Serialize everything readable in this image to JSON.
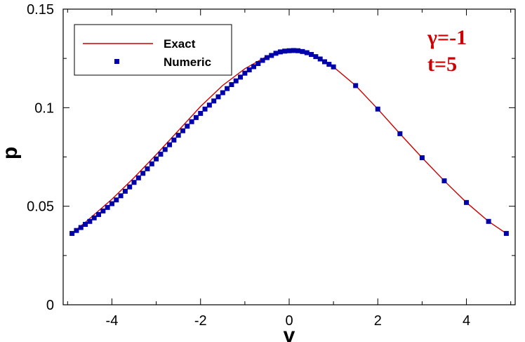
{
  "chart_data": {
    "type": "scatter",
    "xlabel": "v",
    "ylabel": "p",
    "xlim": [
      -5.1,
      5.1
    ],
    "ylim": [
      0,
      0.15
    ],
    "xticks": [
      -4,
      -2,
      0,
      2,
      4
    ],
    "xtick_labels": [
      "-4",
      "-2",
      "0",
      "2",
      "4"
    ],
    "yticks": [
      0,
      0.05,
      0.1,
      0.15
    ],
    "ytick_labels": [
      "0",
      "0.05",
      "0.1",
      "0.15"
    ],
    "grid": false,
    "legend_position": "top-left",
    "series": [
      {
        "name": "Exact",
        "style": "line",
        "color": "#cc0000",
        "x": [
          -4.9,
          -4.5,
          -4.0,
          -3.5,
          -3.0,
          -2.5,
          -2.0,
          -1.5,
          -1.0,
          -0.5,
          0.0,
          0.5,
          1.0,
          1.5,
          2.0,
          2.5,
          3.0,
          3.5,
          4.0,
          4.5,
          4.9
        ],
        "y": [
          0.0362,
          0.0438,
          0.0536,
          0.0645,
          0.0762,
          0.0884,
          0.1006,
          0.1113,
          0.1198,
          0.1261,
          0.129,
          0.127,
          0.1207,
          0.1112,
          0.0993,
          0.0868,
          0.0746,
          0.0629,
          0.0519,
          0.0423,
          0.0362
        ]
      },
      {
        "name": "Numeric",
        "style": "markers",
        "color": "#0000aa",
        "x": [
          -4.9,
          -4.8,
          -4.7,
          -4.6,
          -4.5,
          -4.4,
          -4.3,
          -4.2,
          -4.1,
          -4.0,
          -3.9,
          -3.8,
          -3.7,
          -3.6,
          -3.5,
          -3.4,
          -3.3,
          -3.2,
          -3.1,
          -3.0,
          -2.9,
          -2.8,
          -2.7,
          -2.6,
          -2.5,
          -2.4,
          -2.3,
          -2.2,
          -2.1,
          -2.0,
          -1.9,
          -1.8,
          -1.7,
          -1.6,
          -1.5,
          -1.4,
          -1.3,
          -1.2,
          -1.1,
          -1.0,
          -0.9,
          -0.8,
          -0.7,
          -0.6,
          -0.5,
          -0.4,
          -0.3,
          -0.2,
          -0.1,
          0.0,
          0.1,
          0.2,
          0.3,
          0.4,
          0.5,
          0.6,
          0.7,
          0.8,
          0.9,
          1.0,
          1.5,
          2.0,
          2.5,
          3.0,
          3.5,
          4.0,
          4.5,
          4.9
        ],
        "y": [
          0.0362,
          0.0377,
          0.0392,
          0.0408,
          0.0423,
          0.0441,
          0.0458,
          0.0476,
          0.0494,
          0.0513,
          0.0532,
          0.0553,
          0.0576,
          0.0598,
          0.0621,
          0.0644,
          0.0667,
          0.069,
          0.0715,
          0.074,
          0.0764,
          0.0788,
          0.0812,
          0.0836,
          0.086,
          0.0883,
          0.0906,
          0.0929,
          0.095,
          0.0971,
          0.0993,
          0.1013,
          0.1034,
          0.1055,
          0.1076,
          0.1097,
          0.1117,
          0.1136,
          0.1155,
          0.1175,
          0.1192,
          0.1208,
          0.1224,
          0.124,
          0.1254,
          0.1265,
          0.1276,
          0.1283,
          0.1287,
          0.1289,
          0.129,
          0.1289,
          0.1285,
          0.1279,
          0.127,
          0.1259,
          0.1247,
          0.1233,
          0.122,
          0.1207,
          0.1112,
          0.0993,
          0.0868,
          0.0746,
          0.0629,
          0.0519,
          0.0423,
          0.0362
        ]
      }
    ]
  },
  "annotations": {
    "gamma": "γ=-1",
    "time": "t=5",
    "color": "#cc0000"
  }
}
